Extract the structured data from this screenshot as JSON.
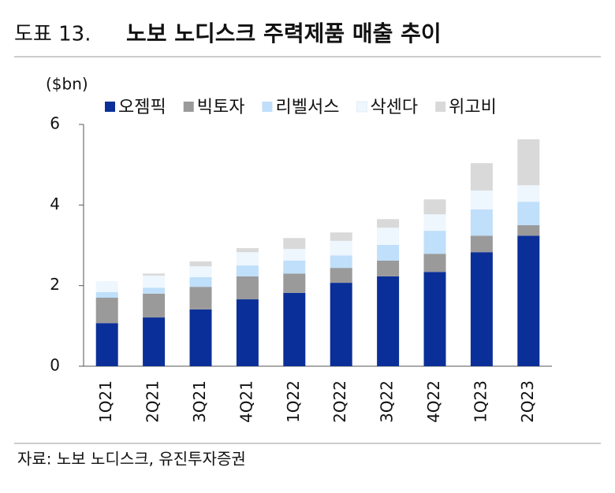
{
  "chart_data": {
    "type": "stacked_bar",
    "figure_label": "도표 13.",
    "title": "노보 노디스크 주력제품 매출 추이",
    "y_label": "($bn)",
    "source": "자료: 노보 노디스크, 유진투자증권",
    "categories": [
      "1Q21",
      "2Q21",
      "3Q21",
      "4Q21",
      "1Q22",
      "2Q22",
      "3Q22",
      "4Q22",
      "1Q23",
      "2Q23"
    ],
    "series": [
      {
        "name": "오젬픽",
        "color": "#0b2f98",
        "values": [
          1.07,
          1.21,
          1.41,
          1.66,
          1.82,
          2.07,
          2.23,
          2.34,
          2.83,
          3.24
        ]
      },
      {
        "name": "빅토자",
        "color": "#9a9a9a",
        "values": [
          0.63,
          0.59,
          0.56,
          0.57,
          0.48,
          0.37,
          0.39,
          0.45,
          0.41,
          0.26
        ]
      },
      {
        "name": "리벨서스",
        "color": "#bfdffa",
        "values": [
          0.14,
          0.15,
          0.24,
          0.27,
          0.32,
          0.31,
          0.39,
          0.57,
          0.65,
          0.58
        ]
      },
      {
        "name": "삭센다",
        "color": "#eef6fe",
        "values": [
          0.27,
          0.3,
          0.27,
          0.33,
          0.29,
          0.36,
          0.43,
          0.41,
          0.47,
          0.41
        ]
      },
      {
        "name": "위고비",
        "color": "#d9d9d9",
        "values": [
          0,
          0.05,
          0.12,
          0.1,
          0.27,
          0.21,
          0.21,
          0.37,
          0.68,
          1.14
        ]
      }
    ],
    "ylim": [
      0,
      6
    ],
    "yticks": [
      0,
      2,
      4,
      6
    ]
  }
}
